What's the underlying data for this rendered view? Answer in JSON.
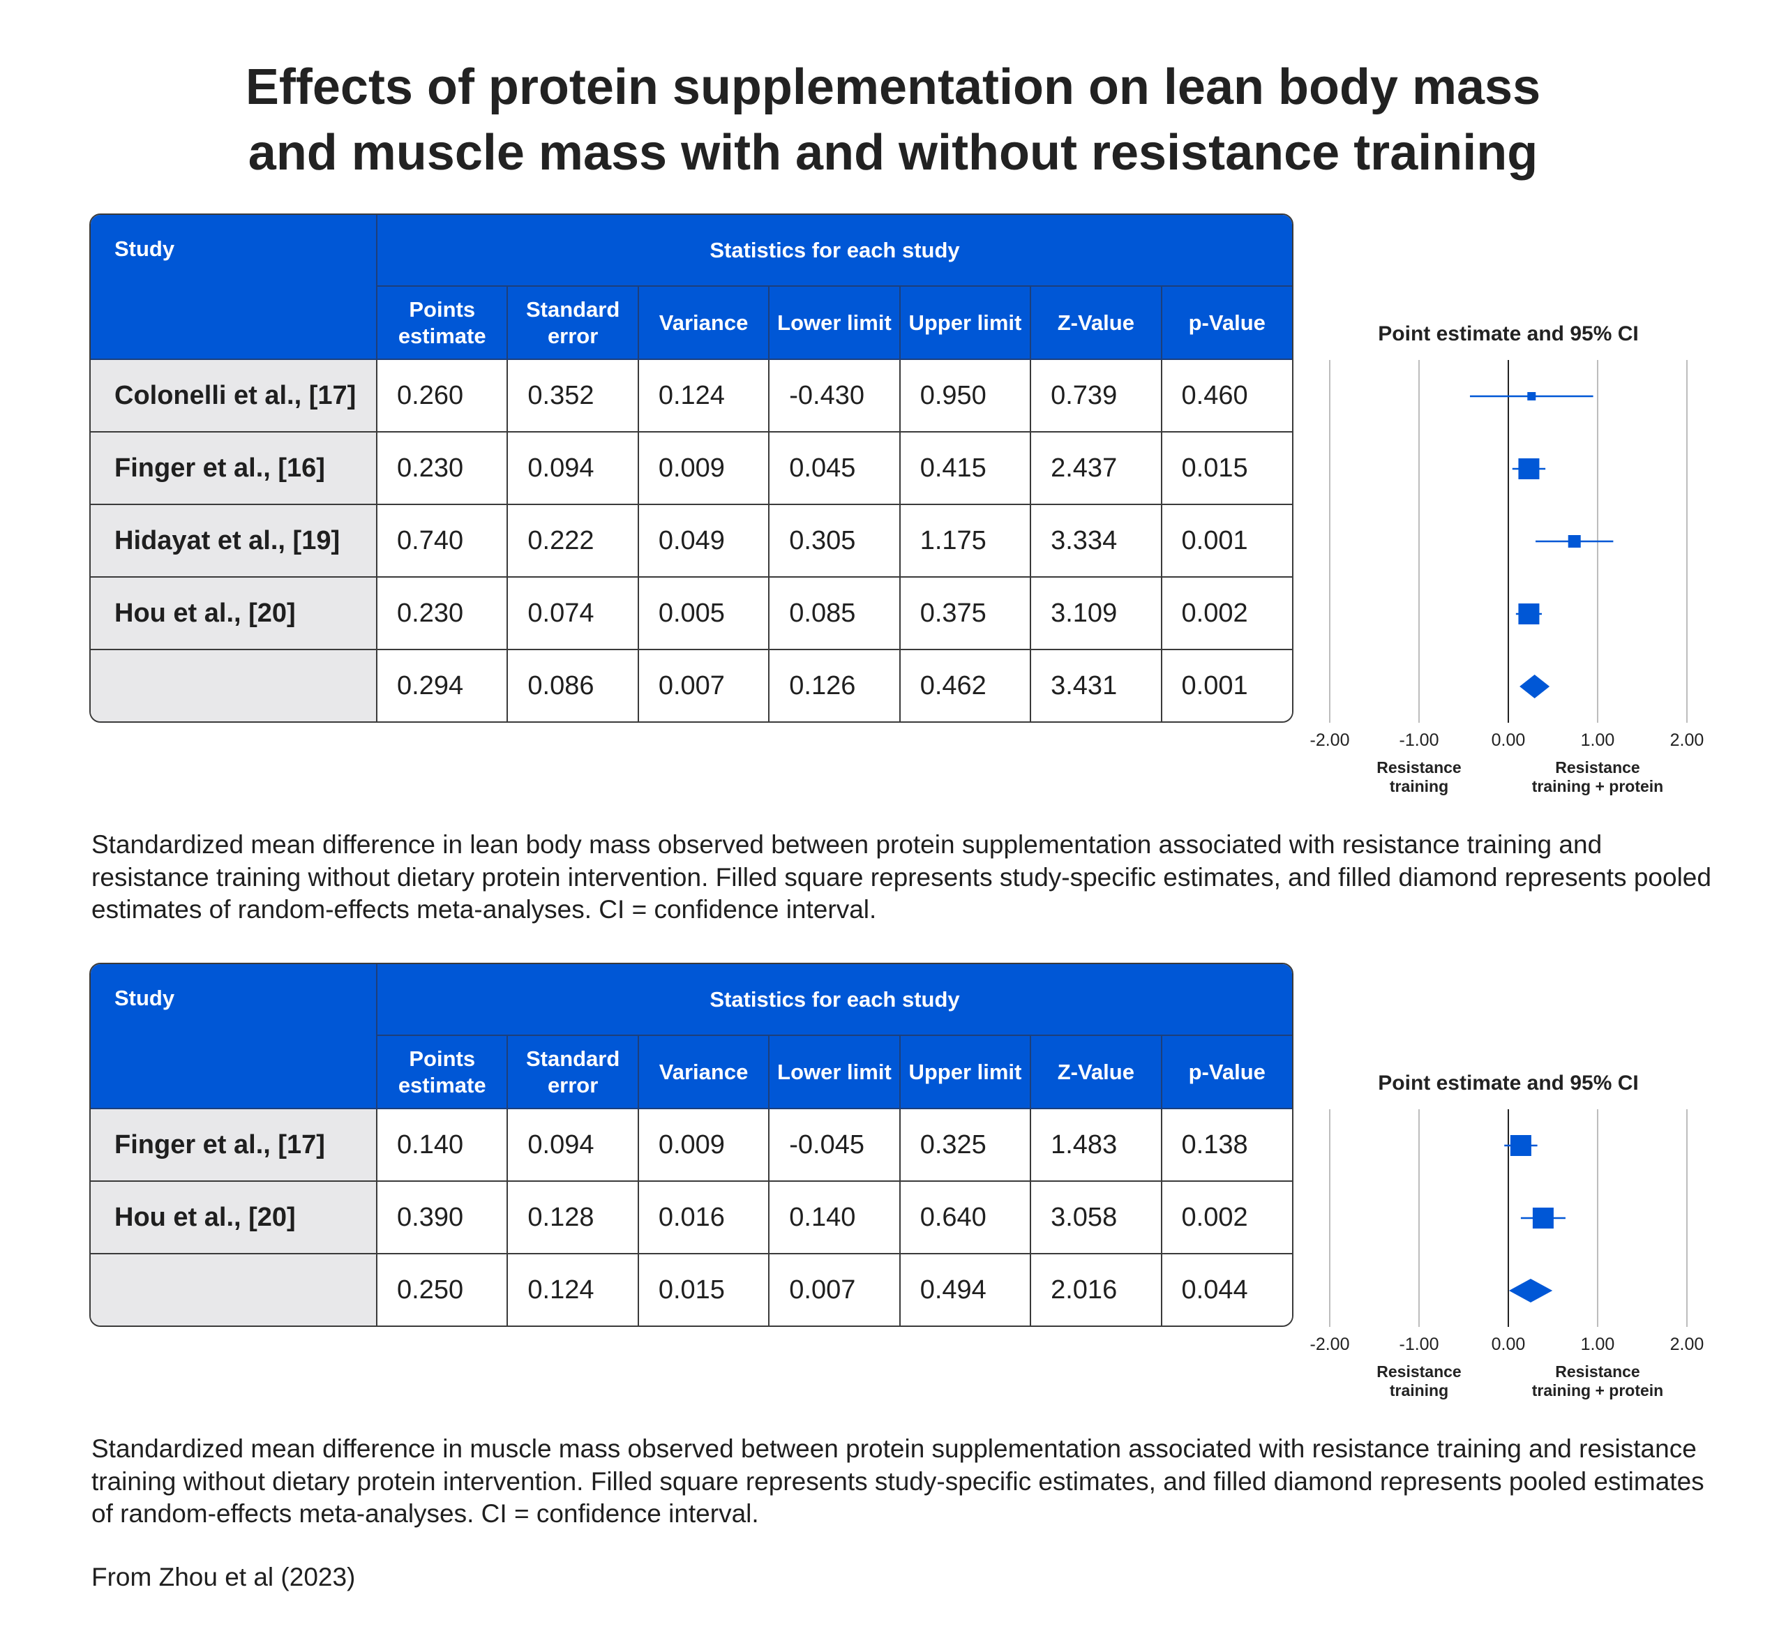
{
  "title": [
    "Effects of protein supplementation on lean body mass",
    "and muscle mass with and without resistance training"
  ],
  "colors": {
    "accent": "#0057d6",
    "study_bg": "#e8e8ea",
    "gridline": "#bdbdbd"
  },
  "tables": [
    {
      "study_header": "Study",
      "group_header": "Statistics for each study",
      "columns": [
        "Points estimate",
        "Standard error",
        "Variance",
        "Lower limit",
        "Upper limit",
        "Z-Value",
        "p-Value"
      ],
      "rows": [
        {
          "study": "Colonelli et al., [17]",
          "values": [
            "0.260",
            "0.352",
            "0.124",
            "-0.430",
            "0.950",
            "0.739",
            "0.460"
          ]
        },
        {
          "study": "Finger et al., [16]",
          "values": [
            "0.230",
            "0.094",
            "0.009",
            "0.045",
            "0.415",
            "2.437",
            "0.015"
          ]
        },
        {
          "study": "Hidayat et al., [19]",
          "values": [
            "0.740",
            "0.222",
            "0.049",
            "0.305",
            "1.175",
            "3.334",
            "0.001"
          ]
        },
        {
          "study": "Hou et al., [20]",
          "values": [
            "0.230",
            "0.074",
            "0.005",
            "0.085",
            "0.375",
            "3.109",
            "0.002"
          ]
        },
        {
          "study": "",
          "values": [
            "0.294",
            "0.086",
            "0.007",
            "0.126",
            "0.462",
            "3.431",
            "0.001"
          ]
        }
      ]
    },
    {
      "study_header": "Study",
      "group_header": "Statistics for each study",
      "columns": [
        "Points estimate",
        "Standard error",
        "Variance",
        "Lower limit",
        "Upper limit",
        "Z-Value",
        "p-Value"
      ],
      "rows": [
        {
          "study": "Finger et al., [17]",
          "values": [
            "0.140",
            "0.094",
            "0.009",
            "-0.045",
            "0.325",
            "1.483",
            "0.138"
          ]
        },
        {
          "study": "Hou et al., [20]",
          "values": [
            "0.390",
            "0.128",
            "0.016",
            "0.140",
            "0.640",
            "3.058",
            "0.002"
          ]
        },
        {
          "study": "",
          "values": [
            "0.250",
            "0.124",
            "0.015",
            "0.007",
            "0.494",
            "2.016",
            "0.044"
          ]
        }
      ]
    }
  ],
  "chart_data": [
    {
      "type": "forest",
      "title": "Point estimate and 95% CI",
      "xlim": [
        -2,
        2
      ],
      "xticks": [
        "-2.00",
        "-1.00",
        "0.00",
        "1.00",
        "2.00"
      ],
      "xtick_values": [
        -2,
        -1,
        0,
        1,
        2
      ],
      "left_label": [
        "Resistance",
        "training"
      ],
      "right_label": [
        "Resistance",
        "training + protein"
      ],
      "grid": true,
      "points": [
        {
          "study": "Colonelli et al., [17]",
          "estimate": 0.26,
          "lower": -0.43,
          "upper": 0.95,
          "marker": "square"
        },
        {
          "study": "Finger et al., [16]",
          "estimate": 0.23,
          "lower": 0.045,
          "upper": 0.415,
          "marker": "square"
        },
        {
          "study": "Hidayat et al., [19]",
          "estimate": 0.74,
          "lower": 0.305,
          "upper": 1.175,
          "marker": "square"
        },
        {
          "study": "Hou et al., [20]",
          "estimate": 0.23,
          "lower": 0.085,
          "upper": 0.375,
          "marker": "square"
        },
        {
          "study": "pooled",
          "estimate": 0.294,
          "lower": 0.126,
          "upper": 0.462,
          "marker": "diamond"
        }
      ]
    },
    {
      "type": "forest",
      "title": "Point estimate and 95% CI",
      "xlim": [
        -2,
        2
      ],
      "xticks": [
        "-2.00",
        "-1.00",
        "0.00",
        "1.00",
        "2.00"
      ],
      "xtick_values": [
        -2,
        -1,
        0,
        1,
        2
      ],
      "left_label": [
        "Resistance",
        "training"
      ],
      "right_label": [
        "Resistance",
        "training + protein"
      ],
      "grid": true,
      "points": [
        {
          "study": "Finger et al., [17]",
          "estimate": 0.14,
          "lower": -0.045,
          "upper": 0.325,
          "marker": "square"
        },
        {
          "study": "Hou et al., [20]",
          "estimate": 0.39,
          "lower": 0.14,
          "upper": 0.64,
          "marker": "square"
        },
        {
          "study": "pooled",
          "estimate": 0.25,
          "lower": 0.007,
          "upper": 0.494,
          "marker": "diamond"
        }
      ]
    }
  ],
  "captions": [
    "Standardized mean difference in lean body mass observed between protein supplementation associated with resistance training and resistance training without dietary protein intervention. Filled square represents study-specific estimates, and filled diamond represents pooled estimates of random-effects meta-analyses. CI = confidence interval.",
    "Standardized mean difference in muscle mass observed between protein supplementation associated with resistance training and resistance training without dietary protein intervention. Filled square represents study-specific estimates, and filled diamond represents pooled estimates of random-effects meta-analyses. CI = confidence interval."
  ],
  "source": "From Zhou et al (2023)"
}
